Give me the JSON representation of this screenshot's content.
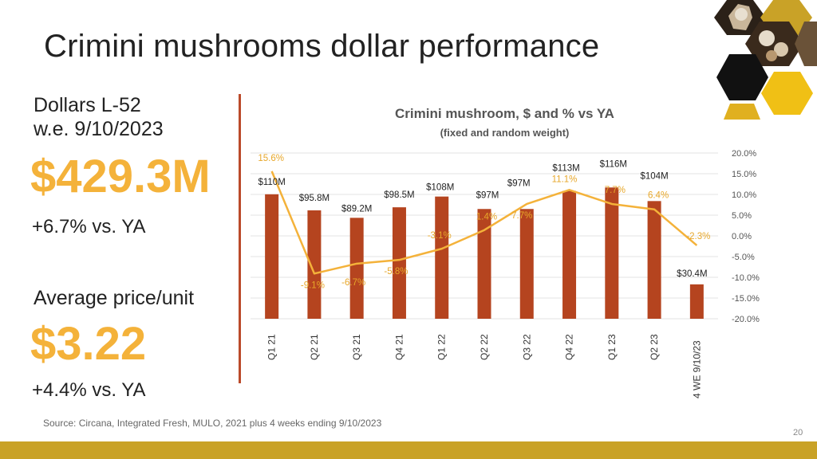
{
  "slide": {
    "title": "Crimini mushrooms dollar performance",
    "kpi_label_1a": "Dollars L-52",
    "kpi_label_1b": "w.e. 9/10/2023",
    "kpi_value_1": "$429.3M",
    "kpi_delta_1": "+6.7% vs. YA",
    "kpi_label_2": "Average price/unit",
    "kpi_value_2": "$3.22",
    "kpi_delta_2": "+4.4% vs. YA",
    "source": "Source: Circana, Integrated Fresh, MULO, 2021 plus 4 weeks ending 9/10/2023",
    "page_number": "20"
  },
  "colors": {
    "bar": "#b5441f",
    "line": "#f4b23a",
    "accent": "#f4b23a",
    "divider": "#bb4a2a",
    "bottom_bar": "#c9a227"
  },
  "chart_data": {
    "type": "bar",
    "title": "Crimini mushroom, $ and % vs YA",
    "subtitle": "(fixed and random weight)",
    "categories": [
      "Q1 21",
      "Q2 21",
      "Q3 21",
      "Q4 21",
      "Q1 22",
      "Q2 22",
      "Q3 22",
      "Q4 22",
      "Q1 23",
      "Q2 23",
      "4 WE 9/10/23"
    ],
    "series": [
      {
        "type": "bar",
        "values": [
          110,
          95.8,
          89.2,
          98.5,
          108,
          97,
          97,
          113,
          116,
          104,
          30.4
        ],
        "labels": [
          "$110M",
          "$95.8M",
          "$89.2M",
          "$98.5M",
          "$108M",
          "$97M",
          "$97M",
          "$113M",
          "$116M",
          "$104M",
          "$30.4M"
        ]
      },
      {
        "type": "line",
        "axis": "right",
        "values": [
          15.6,
          -9.1,
          -6.7,
          -5.8,
          -3.1,
          1.4,
          7.7,
          11.1,
          7.7,
          6.4,
          -2.3
        ],
        "labels": [
          "15.6%",
          "-9.1%",
          "-6.7%",
          "-5.8%",
          "-3.1%",
          "1.4%",
          "7.7%",
          "11.1%",
          "7.7%",
          "6.4%",
          "-2.3%"
        ]
      }
    ],
    "y2_ticks": [
      "20.0%",
      "15.0%",
      "10.0%",
      "5.0%",
      "0.0%",
      "-5.0%",
      "-10.0%",
      "-15.0%",
      "-20.0%"
    ],
    "y2lim": [
      -20,
      20
    ],
    "grid": true,
    "legend": "none"
  }
}
